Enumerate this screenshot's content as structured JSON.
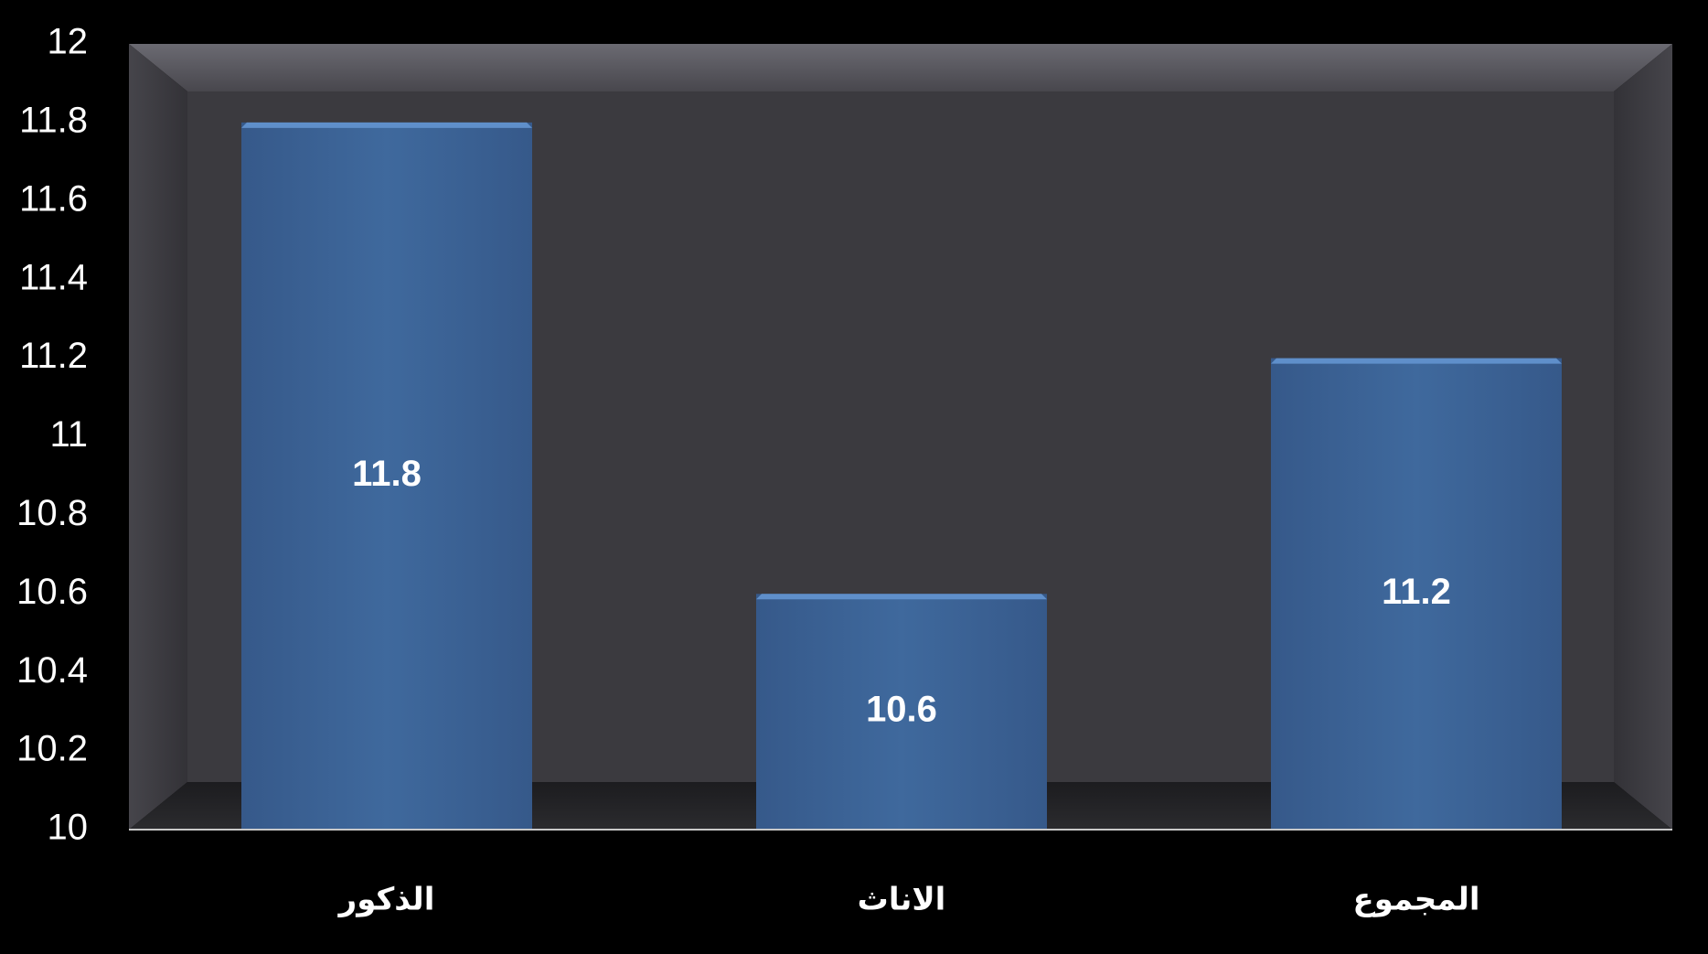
{
  "chart_data": {
    "type": "bar",
    "categories": [
      "الذكور",
      "الاناث",
      "المجموع"
    ],
    "values": [
      11.8,
      10.6,
      11.2
    ],
    "data_labels": [
      "11.8",
      "10.6",
      "11.2"
    ],
    "y_ticks": [
      "10",
      "10.2",
      "10.4",
      "10.6",
      "10.8",
      "11",
      "11.2",
      "11.4",
      "11.6",
      "11.8",
      "12"
    ],
    "title": "",
    "xlabel": "",
    "ylabel": "",
    "ylim": [
      10,
      12
    ],
    "grid": false,
    "legend": "none",
    "colors": {
      "background": "#000000",
      "plot_face": "#3b3a3f",
      "plot_top": "#5c5b62",
      "plot_bottom": "#1f1f22",
      "bar_fill": "#3d6699",
      "bar_top": "#5f8fca",
      "axis_line": "#c8c8c8",
      "text": "#ffffff"
    }
  }
}
